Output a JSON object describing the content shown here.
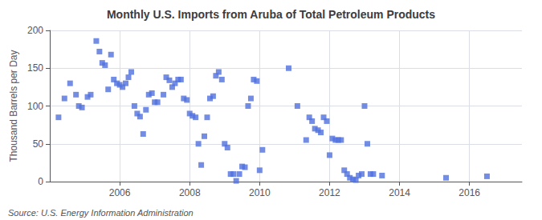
{
  "chart_data": {
    "type": "scatter",
    "title": "Monthly U.S. Imports from Aruba of Total Petroleum Products",
    "ylabel": "Thousand Barrels per Day",
    "annotations": [
      "Source: U.S. Energy Information Administration"
    ],
    "marker": "square",
    "grid": true,
    "ylim": [
      0,
      200
    ],
    "yticks": [
      0,
      50,
      100,
      150,
      200
    ],
    "xlim": [
      2004.0,
      2017.5
    ],
    "xticks": [
      2006,
      2008,
      2010,
      2012,
      2014,
      2016
    ],
    "x": [
      2004.25,
      2004.42,
      2004.58,
      2004.75,
      2004.83,
      2004.92,
      2005.08,
      2005.17,
      2005.33,
      2005.42,
      2005.5,
      2005.58,
      2005.67,
      2005.75,
      2005.83,
      2005.92,
      2006.0,
      2006.08,
      2006.17,
      2006.25,
      2006.33,
      2006.42,
      2006.5,
      2006.58,
      2006.67,
      2006.75,
      2006.83,
      2006.92,
      2007.0,
      2007.08,
      2007.25,
      2007.33,
      2007.42,
      2007.5,
      2007.58,
      2007.67,
      2007.75,
      2007.83,
      2007.92,
      2008.0,
      2008.08,
      2008.17,
      2008.25,
      2008.33,
      2008.42,
      2008.5,
      2008.58,
      2008.67,
      2008.75,
      2008.83,
      2008.92,
      2009.0,
      2009.08,
      2009.17,
      2009.25,
      2009.33,
      2009.42,
      2009.5,
      2009.58,
      2009.67,
      2009.75,
      2009.83,
      2009.92,
      2010.0,
      2010.08,
      2010.83,
      2011.08,
      2011.33,
      2011.42,
      2011.5,
      2011.58,
      2011.67,
      2011.75,
      2011.83,
      2011.92,
      2012.0,
      2012.08,
      2012.17,
      2012.25,
      2012.33,
      2012.42,
      2012.5,
      2012.58,
      2012.67,
      2012.75,
      2012.83,
      2012.92,
      2013.0,
      2013.08,
      2013.17,
      2013.25,
      2013.5,
      2015.33,
      2016.5
    ],
    "values": [
      85,
      110,
      130,
      115,
      100,
      98,
      112,
      115,
      186,
      172,
      157,
      154,
      122,
      168,
      135,
      130,
      128,
      125,
      130,
      138,
      145,
      100,
      90,
      86,
      63,
      95,
      115,
      117,
      105,
      105,
      115,
      138,
      134,
      125,
      130,
      135,
      135,
      110,
      108,
      90,
      87,
      85,
      50,
      22,
      60,
      85,
      110,
      113,
      140,
      145,
      135,
      50,
      45,
      10,
      10,
      1,
      10,
      20,
      19,
      100,
      110,
      135,
      133,
      15,
      42,
      150,
      100,
      55,
      85,
      80,
      70,
      68,
      65,
      85,
      80,
      35,
      57,
      55,
      55,
      55,
      15,
      10,
      5,
      3,
      2,
      8,
      10,
      100,
      50,
      10,
      10,
      8,
      5,
      7
    ]
  }
}
